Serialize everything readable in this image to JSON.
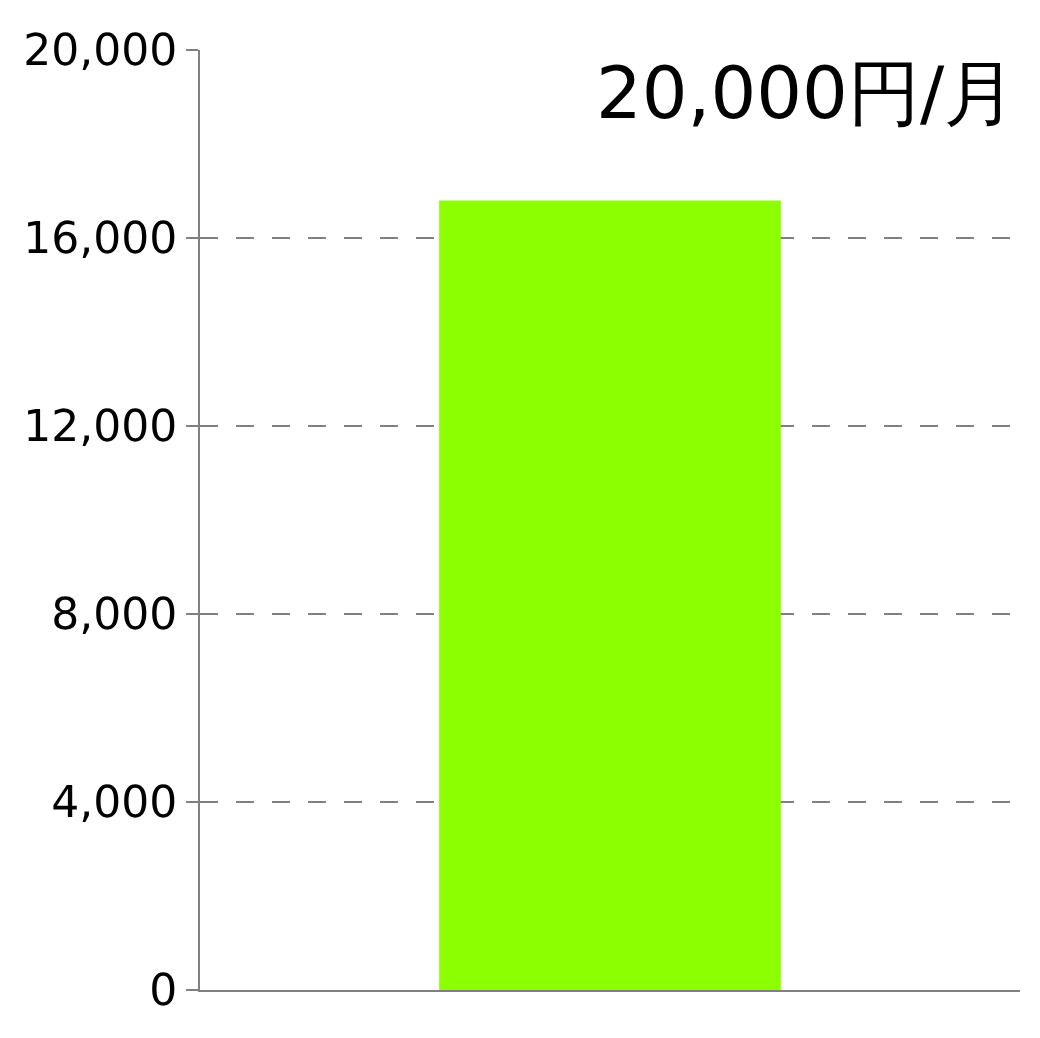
{
  "chart_data": {
    "type": "bar",
    "categories": [
      null
    ],
    "values": [
      16800
    ],
    "color": "#8cff00",
    "ylim": [
      0,
      20000
    ],
    "yticks": [
      {
        "value": 0,
        "label": "0"
      },
      {
        "value": 4000,
        "label": "4,000"
      },
      {
        "value": 8000,
        "label": "8,000"
      },
      {
        "value": 12000,
        "label": "12,000"
      },
      {
        "value": 16000,
        "label": "16,000"
      },
      {
        "value": 20000,
        "label": "20,000"
      }
    ],
    "grid": "y",
    "legend": false,
    "annotations": [
      "20,000円/月"
    ]
  }
}
